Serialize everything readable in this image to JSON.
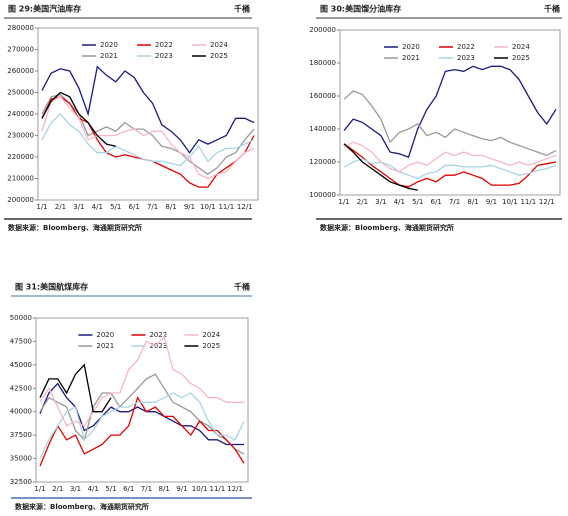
{
  "chart_data": [
    {
      "type": "line",
      "title": "图 29:美国汽油库存",
      "unit": "千桶",
      "source": "数据来源：Bloomberg、海通期货研究所",
      "categories": [
        "1/1",
        null,
        "2/1",
        null,
        "3/1",
        null,
        "4/1",
        null,
        "5/1",
        null,
        "6/1",
        null,
        "7/1",
        null,
        "8/1",
        null,
        "9/1",
        null,
        "10/1",
        null,
        "11/1",
        null,
        "12/1",
        null
      ],
      "ylim": [
        200000,
        280000
      ],
      "yticks": [
        200000,
        210000,
        220000,
        230000,
        240000,
        250000,
        260000,
        270000,
        280000
      ],
      "series": [
        {
          "name": "2020",
          "color": "#1a1a80",
          "values": [
            251000,
            259000,
            261000,
            260000,
            252000,
            240000,
            262000,
            258000,
            255000,
            260000,
            257000,
            250000,
            245000,
            235000,
            232000,
            228000,
            222000,
            228000,
            226000,
            228000,
            230000,
            238000,
            238000,
            236000
          ]
        },
        {
          "name": "2021",
          "color": "#999999",
          "values": [
            240000,
            248000,
            249000,
            245000,
            240000,
            230000,
            232000,
            234000,
            232000,
            236000,
            233000,
            233000,
            230000,
            225000,
            224000,
            222000,
            218000,
            215000,
            212000,
            215000,
            220000,
            222000,
            228000,
            233000
          ]
        },
        {
          "name": "2022",
          "color": "#e00000",
          "values": [
            238000,
            247000,
            248000,
            245000,
            238000,
            236000,
            228000,
            222000,
            220000,
            221000,
            220000,
            219000,
            218000,
            216000,
            214000,
            212000,
            208000,
            206000,
            206000,
            212000,
            215000,
            218000,
            222000,
            230000
          ]
        },
        {
          "name": "2023",
          "color": "#a8d4e6",
          "values": [
            228000,
            236000,
            240000,
            235000,
            232000,
            226000,
            222000,
            222000,
            225000,
            223000,
            221000,
            219000,
            218000,
            218000,
            217000,
            216000,
            220000,
            225000,
            218000,
            222000,
            224000,
            224000,
            226000,
            228000
          ]
        },
        {
          "name": "2024",
          "color": "#f7b6c8",
          "values": [
            232000,
            246000,
            248000,
            243000,
            238000,
            228000,
            230000,
            230000,
            230000,
            232000,
            233000,
            230000,
            232000,
            232000,
            226000,
            222000,
            220000,
            212000,
            210000,
            212000,
            213000,
            218000,
            222000,
            224000
          ]
        },
        {
          "name": "2025",
          "color": "#000000",
          "values": [
            238000,
            246000,
            250000,
            248000,
            240000,
            236000,
            230000,
            226000,
            225000,
            null,
            null,
            null,
            null,
            null,
            null,
            null,
            null,
            null,
            null,
            null,
            null,
            null,
            null,
            null
          ]
        }
      ]
    },
    {
      "type": "line",
      "title": "图 30:美国馏分油库存",
      "unit": "千桶",
      "source": "数据来源：Bloomberg、海通期货研究所",
      "categories": [
        "1/1",
        null,
        "2/1",
        null,
        "3/1",
        null,
        "4/1",
        null,
        "5/1",
        null,
        "6/1",
        null,
        "7/1",
        null,
        "8/1",
        null,
        "9/1",
        null,
        "10/1",
        null,
        "11/1",
        null,
        "12/1",
        null
      ],
      "ylim": [
        100000,
        200000
      ],
      "yticks": [
        100000,
        120000,
        140000,
        160000,
        180000,
        200000
      ],
      "series": [
        {
          "name": "2020",
          "color": "#1a1a80",
          "values": [
            139000,
            146000,
            144000,
            140000,
            136000,
            126000,
            125000,
            123000,
            140000,
            152000,
            160000,
            175000,
            176000,
            175000,
            178000,
            176000,
            178000,
            178000,
            176000,
            170000,
            160000,
            150000,
            143000,
            152000
          ]
        },
        {
          "name": "2021",
          "color": "#999999",
          "values": [
            158000,
            163000,
            161000,
            154000,
            146000,
            132000,
            138000,
            140000,
            143000,
            136000,
            138000,
            135000,
            140000,
            138000,
            136000,
            134000,
            133000,
            135000,
            132000,
            130000,
            128000,
            126000,
            124000,
            127000
          ]
        },
        {
          "name": "2022",
          "color": "#e00000",
          "values": [
            131000,
            127000,
            123000,
            118000,
            114000,
            110000,
            106000,
            105000,
            108000,
            110000,
            108000,
            112000,
            112000,
            114000,
            112000,
            110000,
            106000,
            106000,
            106000,
            107000,
            112000,
            118000,
            119000,
            120000
          ]
        },
        {
          "name": "2023",
          "color": "#a8d4e6",
          "values": [
            117000,
            120000,
            122000,
            119000,
            120000,
            118000,
            114000,
            112000,
            110000,
            113000,
            114000,
            118000,
            118000,
            117000,
            117000,
            117000,
            118000,
            116000,
            114000,
            112000,
            113000,
            115000,
            116000,
            118000
          ]
        },
        {
          "name": "2024",
          "color": "#f7b6c8",
          "values": [
            129000,
            132000,
            130000,
            126000,
            120000,
            116000,
            114000,
            118000,
            120000,
            118000,
            122000,
            126000,
            124000,
            126000,
            124000,
            124000,
            122000,
            120000,
            118000,
            120000,
            118000,
            120000,
            122000,
            124000
          ]
        },
        {
          "name": "2025",
          "color": "#000000",
          "values": [
            131000,
            126000,
            120000,
            116000,
            112000,
            108000,
            106000,
            104000,
            103000,
            null,
            null,
            null,
            null,
            null,
            null,
            null,
            null,
            null,
            null,
            null,
            null,
            null,
            null,
            null
          ]
        }
      ]
    },
    {
      "type": "line",
      "title": "图 31:美国航煤库存",
      "unit": "千桶",
      "source": "数据来源：Bloomberg、海通期货研究所",
      "categories": [
        "1/1",
        null,
        "2/1",
        null,
        "3/1",
        null,
        "4/1",
        null,
        "5/1",
        null,
        "6/1",
        null,
        "7/1",
        null,
        "8/1",
        null,
        "9/1",
        null,
        "10/1",
        null,
        "11/1",
        null,
        "12/1",
        null
      ],
      "ylim": [
        32500,
        50000
      ],
      "yticks": [
        32500,
        35000,
        37500,
        40000,
        42500,
        45000,
        47500,
        50000
      ],
      "series": [
        {
          "name": "2020",
          "color": "#1a1a80",
          "values": [
            39800,
            42000,
            43000,
            41500,
            40500,
            38000,
            38500,
            39500,
            40500,
            40000,
            40000,
            40500,
            40000,
            40000,
            39500,
            39000,
            38500,
            38500,
            38000,
            37000,
            37000,
            36500,
            36500,
            36500
          ]
        },
        {
          "name": "2021",
          "color": "#999999",
          "values": [
            40000,
            41500,
            41000,
            40500,
            38000,
            37000,
            40500,
            42000,
            42000,
            40500,
            41500,
            42500,
            43500,
            44000,
            42500,
            41000,
            40500,
            40000,
            39000,
            38500,
            37500,
            37000,
            36000,
            35500
          ]
        },
        {
          "name": "2022",
          "color": "#e00000",
          "values": [
            34200,
            36500,
            38500,
            37000,
            37500,
            35500,
            36000,
            36500,
            37500,
            37500,
            38500,
            41500,
            40000,
            40500,
            39500,
            39500,
            38500,
            37500,
            39000,
            38000,
            38000,
            37000,
            36000,
            34500
          ]
        },
        {
          "name": "2023",
          "color": "#a8d4e6",
          "values": [
            35000,
            37000,
            38500,
            40000,
            40500,
            37000,
            38000,
            39500,
            40000,
            40500,
            40500,
            41000,
            41000,
            41000,
            41500,
            42000,
            41500,
            42000,
            41000,
            39000,
            37500,
            37500,
            37000,
            39000
          ]
        },
        {
          "name": "2024",
          "color": "#f7b6c8",
          "values": [
            41000,
            42500,
            40500,
            38500,
            39000,
            38500,
            40000,
            41500,
            42000,
            42000,
            44500,
            45500,
            47500,
            47000,
            48000,
            44500,
            44000,
            43000,
            42500,
            41500,
            41500,
            41000,
            41000,
            41000
          ]
        },
        {
          "name": "2025",
          "color": "#000000",
          "values": [
            41500,
            43500,
            43500,
            42000,
            44000,
            45000,
            40000,
            40000,
            41500,
            null,
            null,
            null,
            null,
            null,
            null,
            null,
            null,
            null,
            null,
            null,
            null,
            null,
            null,
            null
          ]
        }
      ]
    }
  ]
}
